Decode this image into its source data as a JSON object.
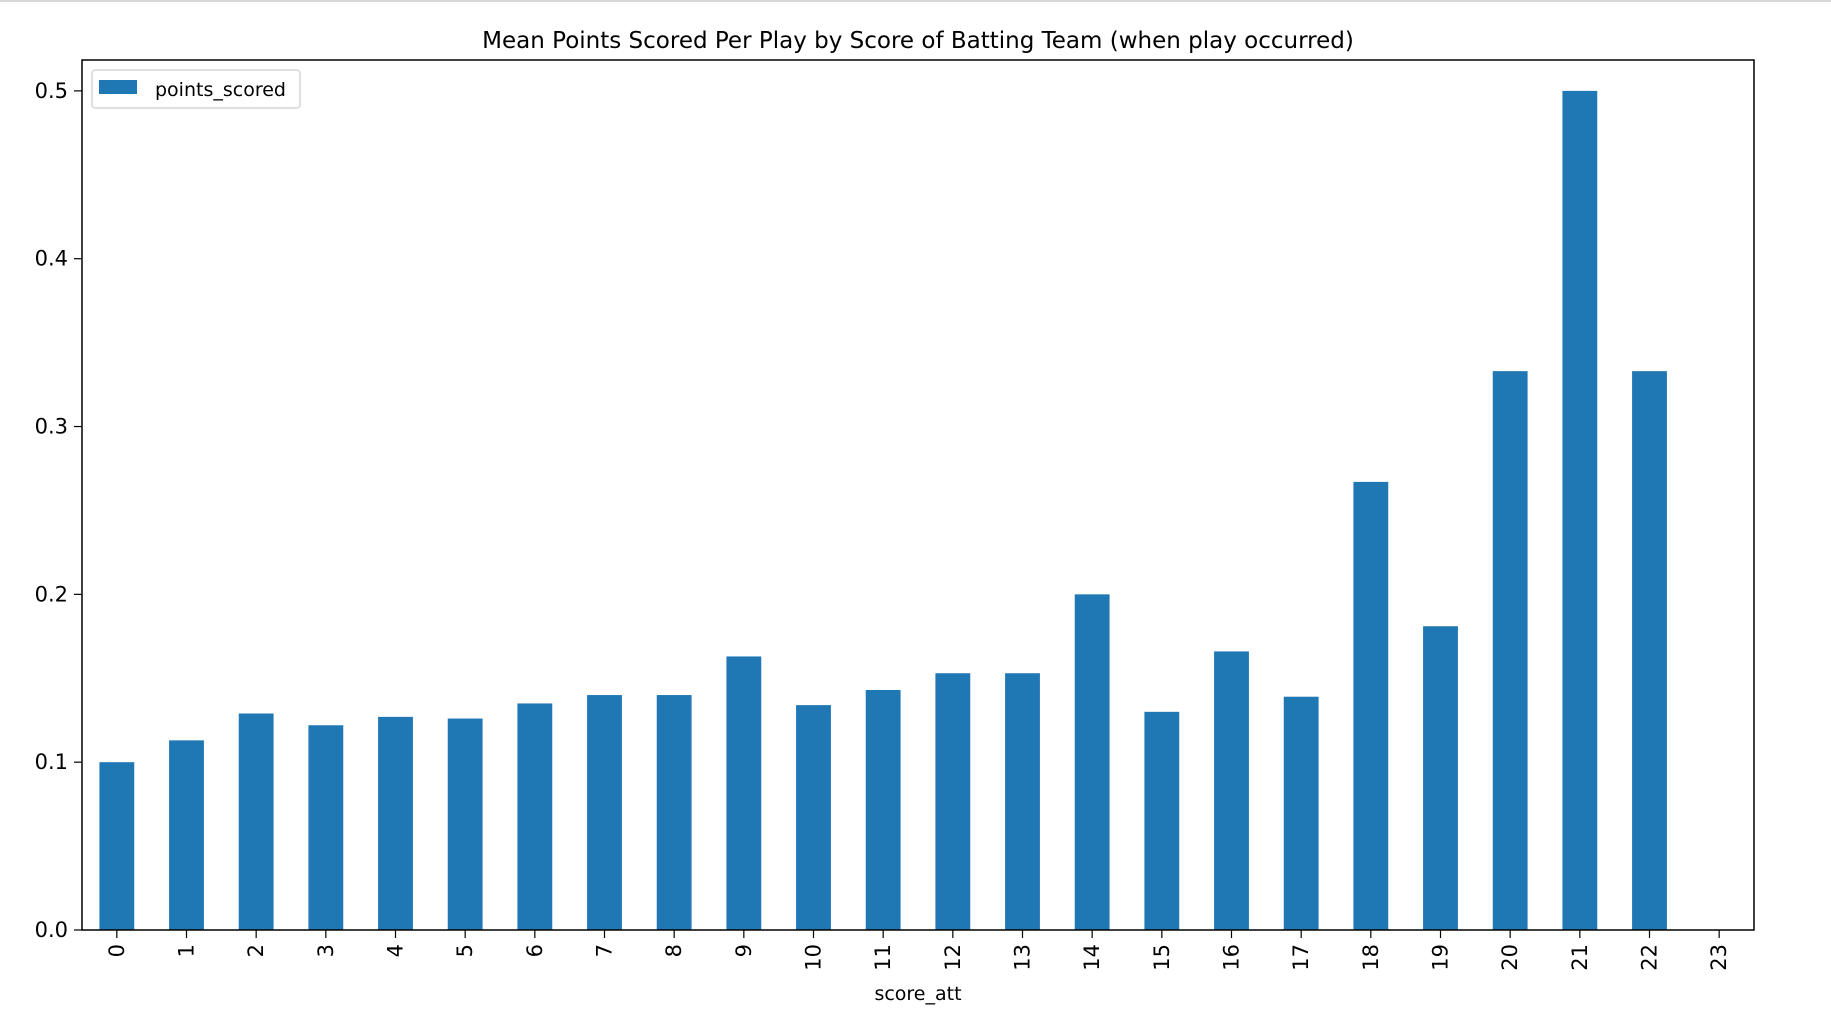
{
  "chart_data": {
    "type": "bar",
    "title": "Mean Points Scored Per Play by Score of Batting Team (when play occurred)",
    "xlabel": "score_att",
    "ylabel": "",
    "categories": [
      "0",
      "1",
      "2",
      "3",
      "4",
      "5",
      "6",
      "7",
      "8",
      "9",
      "10",
      "11",
      "12",
      "13",
      "14",
      "15",
      "16",
      "17",
      "18",
      "19",
      "20",
      "21",
      "22",
      "23"
    ],
    "series": [
      {
        "name": "points_scored",
        "values": [
          0.1,
          0.113,
          0.129,
          0.122,
          0.127,
          0.126,
          0.135,
          0.14,
          0.14,
          0.163,
          0.134,
          0.143,
          0.153,
          0.153,
          0.2,
          0.13,
          0.166,
          0.139,
          0.267,
          0.181,
          0.333,
          0.5,
          0.333,
          0.0
        ],
        "color": "#1f77b4"
      }
    ],
    "ylim": [
      0,
      0.5184
    ],
    "yticks": [
      "0.0",
      "0.1",
      "0.2",
      "0.3",
      "0.4",
      "0.5"
    ],
    "ytick_values": [
      0.0,
      0.1,
      0.2,
      0.3,
      0.4,
      0.5
    ],
    "legend": "top-left",
    "grid": false
  }
}
